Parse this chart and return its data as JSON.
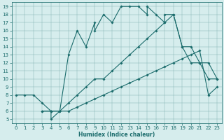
{
  "xlabel": "Humidex (Indice chaleur)",
  "bg_color": "#d6eded",
  "line_color": "#1a6b6b",
  "xlim": [
    -0.5,
    23.5
  ],
  "ylim": [
    4.5,
    19.5
  ],
  "xticks": [
    0,
    1,
    2,
    3,
    4,
    5,
    6,
    7,
    8,
    9,
    10,
    11,
    12,
    13,
    14,
    15,
    16,
    17,
    18,
    19,
    20,
    21,
    22,
    23
  ],
  "yticks": [
    5,
    6,
    7,
    8,
    9,
    10,
    11,
    12,
    13,
    14,
    15,
    16,
    17,
    18,
    19
  ],
  "series": [
    {
      "x": [
        0,
        1,
        2,
        3,
        4,
        4,
        5,
        6,
        7,
        8,
        9,
        9,
        10,
        11,
        12,
        13,
        14,
        15,
        15,
        16,
        17,
        17,
        18,
        19,
        20,
        21,
        22,
        23
      ],
      "y": [
        8,
        8,
        8,
        7,
        6,
        5,
        6,
        13,
        16,
        14,
        17,
        16,
        18,
        17,
        19,
        19,
        19,
        18,
        19,
        18,
        17,
        18,
        18,
        14,
        12,
        12,
        10,
        10
      ]
    },
    {
      "x": [
        3,
        4,
        5,
        6,
        7,
        8,
        9,
        10,
        11,
        12,
        13,
        14,
        15,
        16,
        17,
        18,
        19,
        20,
        21,
        22,
        23
      ],
      "y": [
        6,
        6,
        6,
        7,
        8,
        9,
        10,
        10,
        11,
        12,
        13,
        14,
        15,
        16,
        17,
        18,
        14,
        14,
        12,
        12,
        10
      ]
    },
    {
      "x": [
        3,
        4,
        5,
        6,
        7,
        8,
        9,
        10,
        11,
        12,
        13,
        14,
        15,
        16,
        17,
        18,
        19,
        20,
        21,
        22,
        23
      ],
      "y": [
        6,
        6,
        6,
        6,
        6.5,
        7,
        7.5,
        8,
        8.5,
        9,
        9.5,
        10,
        10.5,
        11,
        11.5,
        12,
        12.5,
        13,
        13.5,
        8,
        9
      ]
    }
  ],
  "marker_size": 1.8,
  "line_width": 0.8,
  "tick_fontsize": 5.0,
  "xlabel_fontsize": 5.5
}
